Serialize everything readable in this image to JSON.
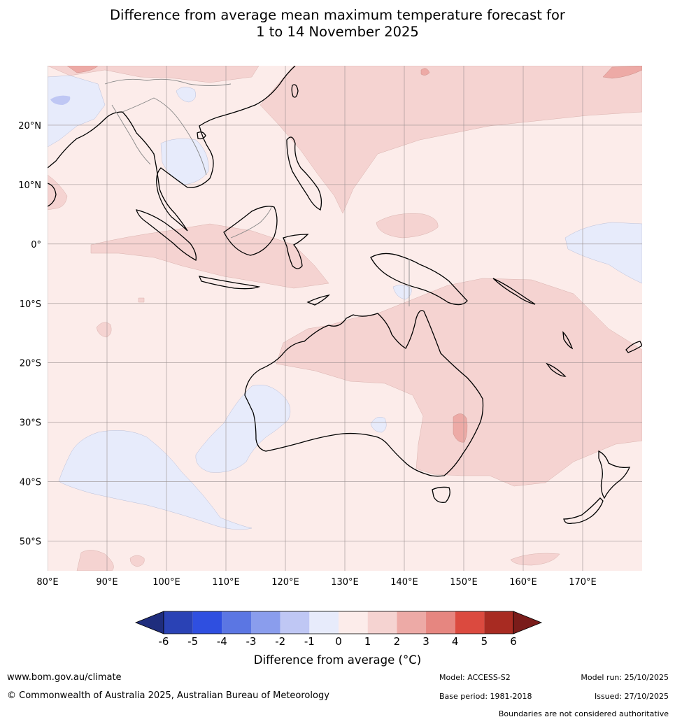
{
  "title": {
    "line1": "Difference from average mean maximum temperature forecast for",
    "line2": "1 to 14 November 2025"
  },
  "map": {
    "lat_labels": [
      "20°N",
      "10°N",
      "0°",
      "10°S",
      "20°S",
      "30°S",
      "40°S",
      "50°S"
    ],
    "lon_labels": [
      "80°E",
      "90°E",
      "100°E",
      "110°E",
      "120°E",
      "130°E",
      "140°E",
      "150°E",
      "160°E",
      "170°E"
    ],
    "lat_values": [
      20,
      10,
      0,
      -10,
      -20,
      -30,
      -40,
      -50
    ],
    "lon_values": [
      80,
      90,
      100,
      110,
      120,
      130,
      140,
      150,
      160,
      170
    ],
    "extent": {
      "lon_min": 80,
      "lon_max": 180,
      "lat_min": -55,
      "lat_max": 30
    }
  },
  "colorbar": {
    "ticks": [
      "-6",
      "-5",
      "-4",
      "-3",
      "-2",
      "-1",
      "0",
      "1",
      "2",
      "3",
      "4",
      "5",
      "6"
    ],
    "colors": [
      "#1f2d7d",
      "#2a42b5",
      "#2f4fe0",
      "#5b76e3",
      "#8a9ded",
      "#bfc7f4",
      "#e7ebfb",
      "#fcecea",
      "#f5d3d1",
      "#edaaa6",
      "#e68680",
      "#db4a3f",
      "#a82b22",
      "#7a1c1a"
    ],
    "title": "Difference from average (°C)"
  },
  "palette": {
    "base": "#fcecea",
    "warm1": "#f5d3d1",
    "warm2": "#edaaa6",
    "cool1": "#e7ebfb",
    "cool2": "#bfc7f4"
  },
  "footer": {
    "website": "www.bom.gov.au/climate",
    "copyright": "© Commonwealth of Australia 2025, Australian Bureau of Meteorology",
    "model": "Model: ACCESS-S2",
    "base_period": "Base period: 1981-2018",
    "model_run": "Model run: 25/10/2025",
    "issued": "Issued: 27/10/2025",
    "disclaimer": "Boundaries are not considered authoritative"
  }
}
